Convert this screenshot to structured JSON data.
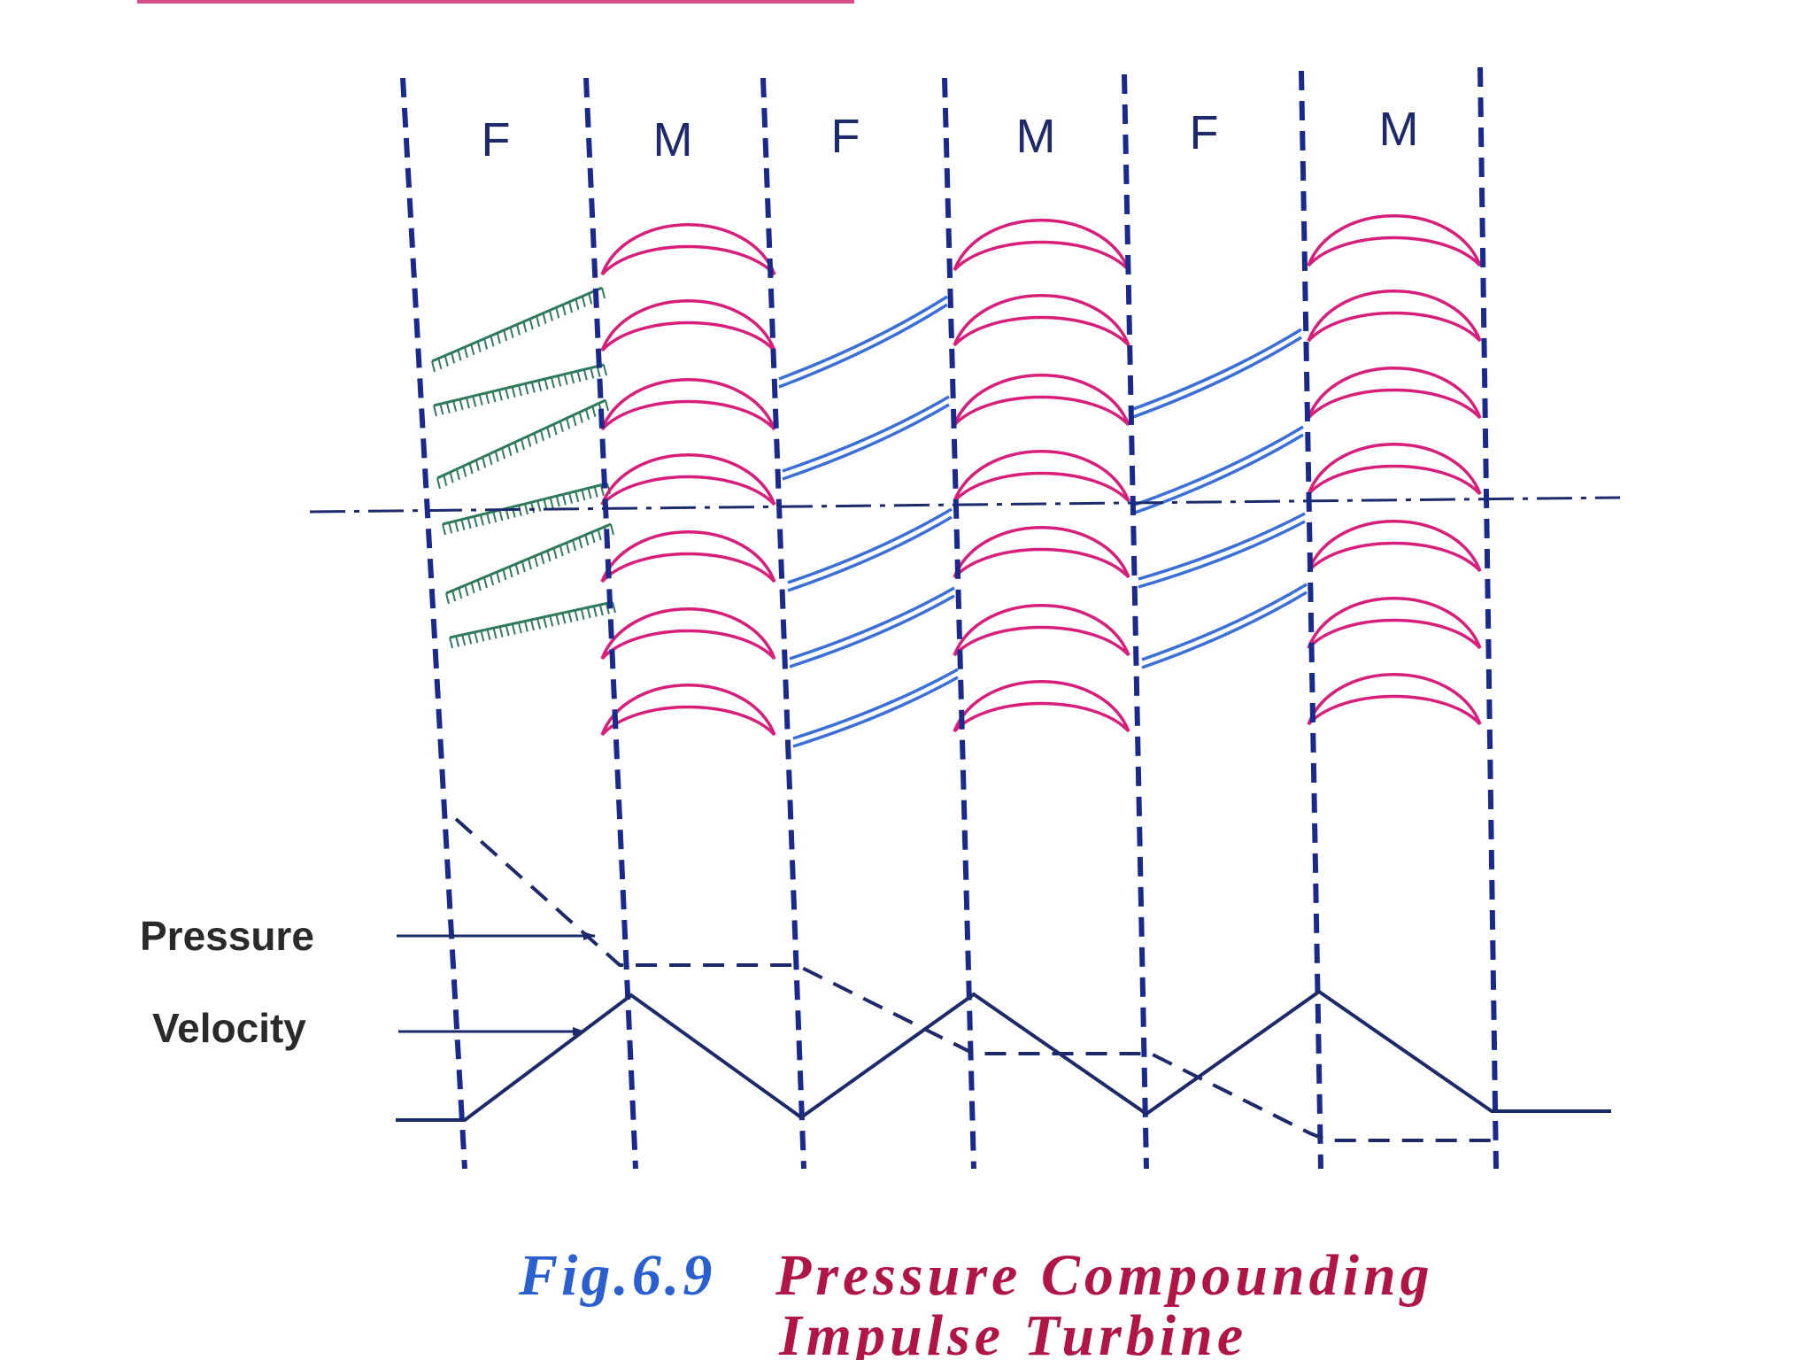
{
  "stages": [
    {
      "label": "F"
    },
    {
      "label": "M"
    },
    {
      "label": "F"
    },
    {
      "label": "M"
    },
    {
      "label": "F"
    },
    {
      "label": "M"
    }
  ],
  "labels": {
    "pressure": "Pressure",
    "velocity": "Velocity"
  },
  "caption": {
    "figure": "Fig.6.9",
    "title_line1": "Pressure Compounding",
    "title_line2": "Impulse Turbine"
  },
  "colors": {
    "divider": "#1a2a8c",
    "moving_blade": "#d81e7a",
    "fixed_blade_first": "#2f7a5a",
    "fixed_blade": "#3a6fd8",
    "curve": "#1c2a6a",
    "caption_fig": "#2a5fd0",
    "caption_title": "#b01545"
  }
}
